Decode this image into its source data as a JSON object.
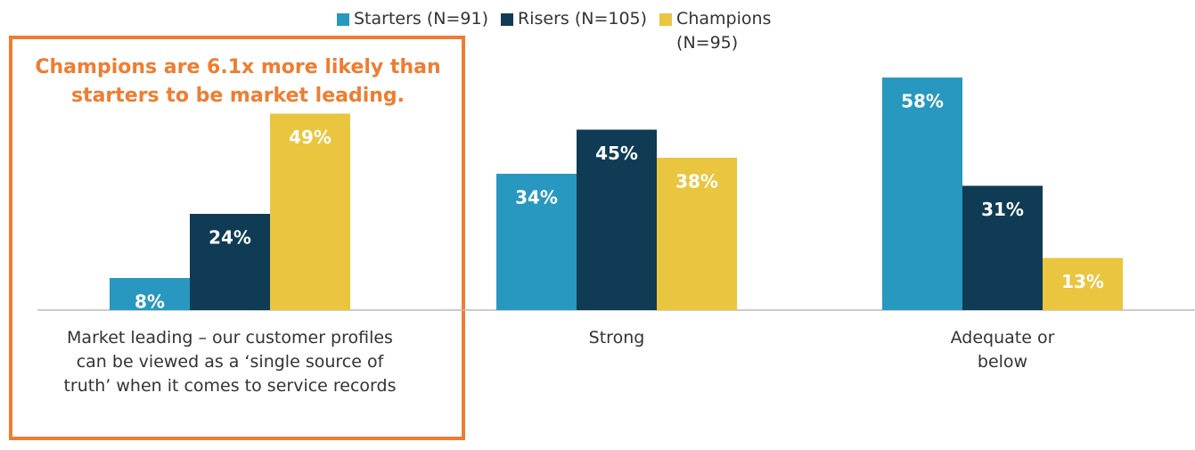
{
  "chart_data": {
    "type": "bar",
    "annotation": "Champions are 6.1x more likely than starters to be market leading.",
    "categories": [
      "Market leading – our customer profiles can be viewed as a ‘single source of truth’ when it comes to service records",
      "Strong",
      "Adequate or below"
    ],
    "series": [
      {
        "name": "Starters (N=91)",
        "color": "#2898c0",
        "values": [
          8,
          34,
          58
        ],
        "value_labels": [
          "8%",
          "34%",
          "58%"
        ]
      },
      {
        "name": "Risers (N=105)",
        "color": "#0f3b54",
        "values": [
          24,
          45,
          31
        ],
        "value_labels": [
          "24%",
          "45%",
          "31%"
        ]
      },
      {
        "name": "Champions (N=95)",
        "color": "#eac53f",
        "values": [
          49,
          38,
          13
        ],
        "value_labels": [
          "49%",
          "38%",
          "13%"
        ]
      }
    ]
  }
}
